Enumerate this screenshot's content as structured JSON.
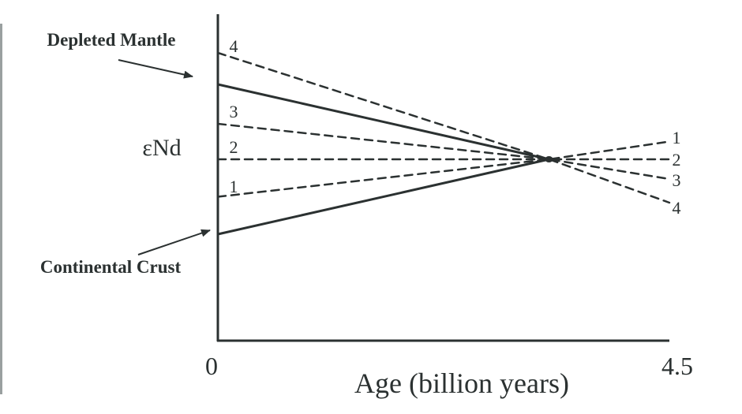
{
  "chart_data": {
    "type": "line",
    "title": "",
    "xlabel": "Age (billion years)",
    "ylabel": "εNd",
    "xlim": [
      0,
      4.5
    ],
    "x_ticks": [
      "0",
      "4.5"
    ],
    "y_ticks": [],
    "grid": false,
    "legend": "none",
    "colors": {
      "axis": "#2b3131",
      "background": "#ffffff"
    },
    "convergence_point": {
      "x": 3.3,
      "y": 0
    },
    "series": [
      {
        "name": "Depleted Mantle",
        "style": "solid",
        "x": [
          0,
          3.3
        ],
        "y": [
          3.8,
          0
        ]
      },
      {
        "name": "Continental Crust",
        "style": "solid",
        "x": [
          0,
          3.3
        ],
        "y": [
          -3.8,
          0
        ]
      },
      {
        "name": "4",
        "style": "dashed",
        "x": [
          0,
          3.3,
          4.5
        ],
        "y": [
          5.4,
          0,
          -2.2
        ]
      },
      {
        "name": "3",
        "style": "dashed",
        "x": [
          0,
          3.3,
          4.5
        ],
        "y": [
          1.8,
          0,
          -1.0
        ]
      },
      {
        "name": "2",
        "style": "dashed",
        "x": [
          0,
          3.3,
          4.5
        ],
        "y": [
          0,
          0,
          0
        ]
      },
      {
        "name": "1",
        "style": "dashed",
        "x": [
          0,
          3.3,
          4.5
        ],
        "y": [
          -1.9,
          0,
          0.9
        ]
      }
    ],
    "line_labels_left": [
      "4",
      "3",
      "2",
      "1"
    ],
    "line_labels_right": [
      "1",
      "2",
      "3",
      "4"
    ],
    "annotations": {
      "depleted_mantle": "Depleted Mantle",
      "continental_crust": "Continental Crust"
    }
  }
}
